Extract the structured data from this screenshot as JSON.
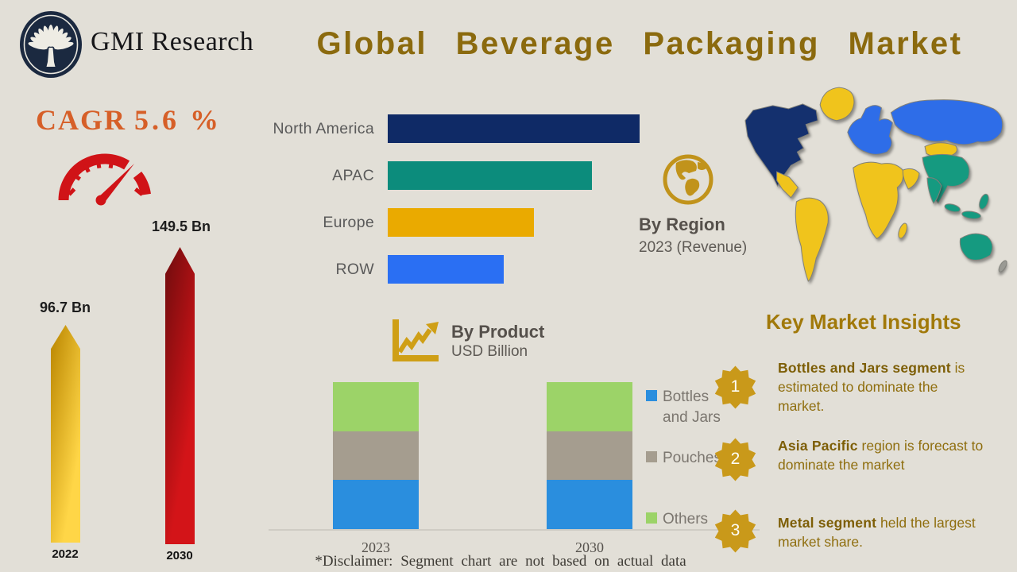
{
  "header": {
    "brand": "GMI Research",
    "title": "Global Beverage Packaging Market"
  },
  "growth": {
    "cagr_label": "CAGR",
    "cagr_value": "5.6 %",
    "start_value_label": "96.7 Bn",
    "end_value_label": "149.5 Bn",
    "start_year": "2022",
    "end_year": "2030"
  },
  "by_region": {
    "title": "By Region",
    "subtitle": "2023 (Revenue)"
  },
  "by_product": {
    "title": "By Product",
    "subtitle": "USD Billion"
  },
  "insights": {
    "title": "Key Market Insights",
    "items": [
      {
        "num": "1",
        "bold": "Bottles and Jars segment",
        "rest": " is estimated to dominate the market."
      },
      {
        "num": "2",
        "bold": "Asia Pacific",
        "rest": " region is forecast to dominate the market"
      },
      {
        "num": "3",
        "bold": "Metal segment",
        "rest": " held the largest market share."
      }
    ]
  },
  "disclaimer": "*Disclaimer:  Segment chart are not based on actual data",
  "colors": {
    "background": "#e2dfd7",
    "title_gold": "#8b6a0e",
    "cagr_orange": "#d65f28",
    "speedometer_red": "#d01317",
    "bar_2022_gradient": [
      "#c28f08",
      "#ffd647"
    ],
    "bar_2030_gradient": [
      "#7d0d0f",
      "#d31418"
    ],
    "badge_gold": "#c9991a",
    "insight_text": "#8f6e0e"
  },
  "icons": [
    "gmi-tree-logo-icon",
    "speedometer-icon",
    "globe-icon",
    "line-chart-icon",
    "world-map",
    "star-badge-icon"
  ],
  "chart_data": [
    {
      "name": "market_growth",
      "type": "bar",
      "categories": [
        "2022",
        "2030"
      ],
      "values": [
        96.7,
        149.5
      ],
      "value_labels": [
        "96.7 Bn",
        "149.5 Bn"
      ],
      "unit": "USD Bn",
      "title": "CAGR 5.6 %",
      "colors": [
        "#eab211",
        "#b01013"
      ]
    },
    {
      "name": "by_region",
      "type": "bar",
      "orientation": "horizontal",
      "title": "By Region",
      "subtitle": "2023 (Revenue)",
      "categories": [
        "North America",
        "APAC",
        "Europe",
        "ROW"
      ],
      "values_relative_pct": [
        100,
        81,
        58,
        46
      ],
      "colors": [
        "#0f2a66",
        "#0c8c7c",
        "#eaaa00",
        "#2a6ff3"
      ],
      "note": "no numeric axis shown; bar lengths read from pixels"
    },
    {
      "name": "by_product",
      "type": "bar",
      "stacked": true,
      "title": "By Product",
      "ylabel": "USD Billion",
      "categories": [
        "2023",
        "2030"
      ],
      "series": [
        {
          "name": "Bottles and Jars",
          "color": "#2a8ede",
          "values_relative_pct": [
            33.3,
            33.3
          ]
        },
        {
          "name": "Pouches",
          "color": "#a59d8f",
          "values_relative_pct": [
            33.4,
            33.4
          ]
        },
        {
          "name": "Others",
          "color": "#9cd368",
          "values_relative_pct": [
            33.3,
            33.3
          ]
        }
      ],
      "legend_position": "right",
      "note": "*Disclaimer: Segment chart are not based on actual data"
    }
  ]
}
